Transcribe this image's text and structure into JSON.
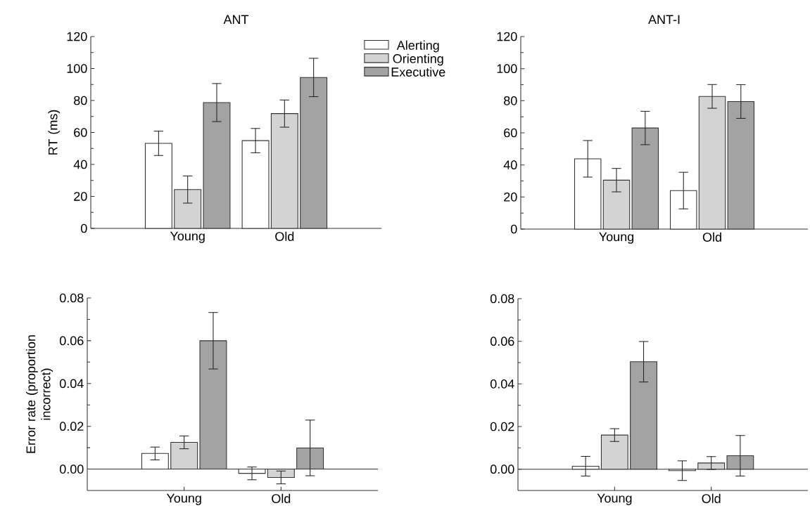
{
  "chart_data": [
    {
      "type": "bar",
      "title": "ANT",
      "ylabel": "RT (ms)",
      "categories": [
        "Young",
        "Old"
      ],
      "legend": "top right",
      "ylim": [
        0,
        120
      ],
      "yticks": [
        0,
        {
          "value": 10,
          "label": null
        },
        20,
        {
          "value": 30,
          "label": null
        },
        40,
        {
          "value": 50,
          "label": null
        },
        60,
        {
          "value": 70,
          "label": null
        },
        80,
        {
          "value": 90,
          "label": null
        },
        100,
        {
          "value": 110,
          "label": null
        },
        120
      ],
      "series": [
        {
          "name": "Alerting",
          "color": "#ffffff",
          "values": [
            53.2,
            54.9
          ],
          "errors": [
            7.6,
            7.6
          ]
        },
        {
          "name": "Orienting",
          "color": "#d3d3d3",
          "values": [
            24.3,
            71.8
          ],
          "errors": [
            8.5,
            8.5
          ]
        },
        {
          "name": "Executive",
          "color": "#a3a3a3",
          "values": [
            78.7,
            94.4
          ],
          "errors": [
            11.9,
            12
          ]
        }
      ]
    },
    {
      "type": "bar",
      "title": "ANT-I",
      "categories": [
        "Young",
        "Old"
      ],
      "ylim": [
        0,
        120
      ],
      "yticks": [
        0,
        {
          "value": 10,
          "label": null
        },
        20,
        {
          "value": 30,
          "label": null
        },
        40,
        {
          "value": 50,
          "label": null
        },
        60,
        {
          "value": 70,
          "label": null
        },
        80,
        {
          "value": 90,
          "label": null
        },
        100,
        {
          "value": 110,
          "label": null
        },
        120
      ],
      "series": [
        {
          "color": "#ffffff",
          "values": [
            43.8,
            24.0
          ],
          "errors": [
            11.4,
            11.4
          ]
        },
        {
          "color": "#d3d3d3",
          "values": [
            30.5,
            82.7
          ],
          "errors": [
            7.3,
            7.4
          ]
        },
        {
          "color": "#a3a3a3",
          "values": [
            63.0,
            79.5
          ],
          "errors": [
            10.4,
            10.5
          ]
        }
      ]
    },
    {
      "type": "bar",
      "ylabel": "Error rate (proportion incorrect)",
      "categories": [
        "Young",
        "Old"
      ],
      "ylim": [
        -0.01,
        0.08
      ],
      "yticks": [
        {
          "value": 0,
          "label": "0.00"
        },
        {
          "value": 0.01,
          "label": null
        },
        {
          "value": 0.02,
          "label": "0.02"
        },
        {
          "value": 0.03,
          "label": null
        },
        {
          "value": 0.04,
          "label": "0.04"
        },
        {
          "value": 0.05,
          "label": null
        },
        {
          "value": 0.06,
          "label": "0.06"
        },
        {
          "value": 0.07,
          "label": null
        },
        {
          "value": 0.08,
          "label": "0.08"
        }
      ],
      "ref_lines": [
        {
          "axis": "y",
          "value": 0
        }
      ],
      "series": [
        {
          "color": "#ffffff",
          "values": [
            0.0073,
            -0.002
          ],
          "errors": [
            0.003,
            0.003
          ]
        },
        {
          "color": "#d3d3d3",
          "values": [
            0.0125,
            -0.0039
          ],
          "errors": [
            0.003,
            0.003
          ]
        },
        {
          "color": "#a3a3a3",
          "values": [
            0.06,
            0.0099
          ],
          "errors": [
            0.0132,
            0.013
          ]
        }
      ]
    },
    {
      "type": "bar",
      "categories": [
        "Young",
        "Old"
      ],
      "ylim": [
        -0.01,
        0.08
      ],
      "yticks": [
        {
          "value": 0,
          "label": "0.00"
        },
        {
          "value": 0.01,
          "label": null
        },
        {
          "value": 0.02,
          "label": "0.02"
        },
        {
          "value": 0.03,
          "label": null
        },
        {
          "value": 0.04,
          "label": "0.04"
        },
        {
          "value": 0.05,
          "label": null
        },
        {
          "value": 0.06,
          "label": "0.06"
        },
        {
          "value": 0.07,
          "label": null
        },
        {
          "value": 0.08,
          "label": "0.08"
        }
      ],
      "ref_lines": [
        {
          "axis": "y",
          "value": 0
        }
      ],
      "series": [
        {
          "color": "#ffffff",
          "values": [
            0.0014,
            -0.0007
          ],
          "errors": [
            0.0046,
            0.0046
          ]
        },
        {
          "color": "#d3d3d3",
          "values": [
            0.016,
            0.0029
          ],
          "errors": [
            0.003,
            0.003
          ]
        },
        {
          "color": "#a3a3a3",
          "values": [
            0.0504,
            0.0063
          ],
          "errors": [
            0.0095,
            0.0095
          ]
        }
      ]
    }
  ]
}
